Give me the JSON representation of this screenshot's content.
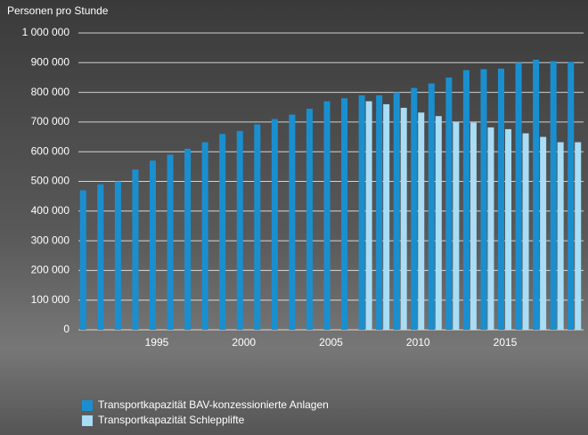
{
  "chart_data": {
    "type": "bar",
    "y_label": "Personen pro Stunde",
    "categories": [
      null,
      null,
      null,
      null,
      "1995",
      null,
      null,
      null,
      null,
      "2000",
      null,
      null,
      null,
      null,
      "2005",
      null,
      null,
      null,
      null,
      "2010",
      null,
      null,
      null,
      null,
      "2015",
      null,
      null,
      null,
      null
    ],
    "series": [
      {
        "name": "Transportkapazität BAV-konzessionierte Anlagen",
        "color": "#1a8fd0",
        "values": [
          470000,
          490000,
          500000,
          540000,
          570000,
          590000,
          610000,
          632000,
          660000,
          670000,
          692000,
          710000,
          725000,
          745000,
          770000,
          780000,
          790000,
          790000,
          800000,
          815000,
          830000,
          850000,
          875000,
          878000,
          880000,
          900000,
          910000,
          905000,
          903000
        ]
      },
      {
        "name": "Transportkapazität Schlepplifte",
        "color": "#a8ddf5",
        "values": [
          null,
          null,
          null,
          null,
          null,
          null,
          null,
          null,
          null,
          null,
          null,
          null,
          null,
          null,
          null,
          null,
          770000,
          760000,
          748000,
          732000,
          720000,
          700000,
          698000,
          682000,
          676000,
          662000,
          650000,
          632000,
          632000
        ]
      }
    ],
    "ylim": [
      0,
      1000000
    ],
    "yticks": [
      0,
      {
        "value": 100000,
        "label": "100 000"
      },
      {
        "value": 200000,
        "label": "200 000"
      },
      {
        "value": 300000,
        "label": "300 000"
      },
      {
        "value": 400000,
        "label": "400 000"
      },
      {
        "value": 500000,
        "label": "500 000"
      },
      {
        "value": 600000,
        "label": "600 000"
      },
      {
        "value": 700000,
        "label": "700 000"
      },
      {
        "value": 800000,
        "label": "800 000"
      },
      {
        "value": 900000,
        "label": "900 000"
      },
      {
        "value": 1000000,
        "label": "1 000 000"
      }
    ],
    "grid": true
  }
}
